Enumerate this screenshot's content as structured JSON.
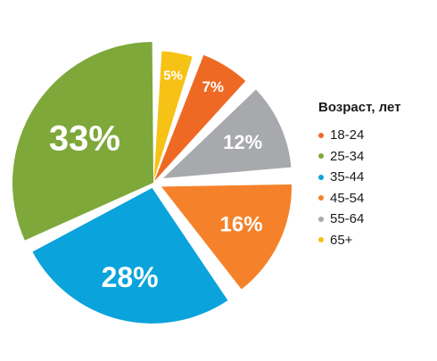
{
  "chart_data": {
    "type": "pie",
    "title": "",
    "legend_title": "Возраст, лет",
    "legend_position": "right",
    "categories": [
      "18-24",
      "25-34",
      "35-44",
      "45-54",
      "55-64",
      "65+"
    ],
    "values": [
      7,
      33,
      28,
      16,
      12,
      5
    ],
    "labels": [
      "7%",
      "33%",
      "28%",
      "16%",
      "12%",
      "5%"
    ],
    "colors": [
      "#ee6a24",
      "#7ea83a",
      "#0aa3dc",
      "#f5822a",
      "#a7a9ac",
      "#f6c215"
    ],
    "exploded": [
      "18-24",
      "45-54",
      "55-64",
      "65+"
    ]
  }
}
